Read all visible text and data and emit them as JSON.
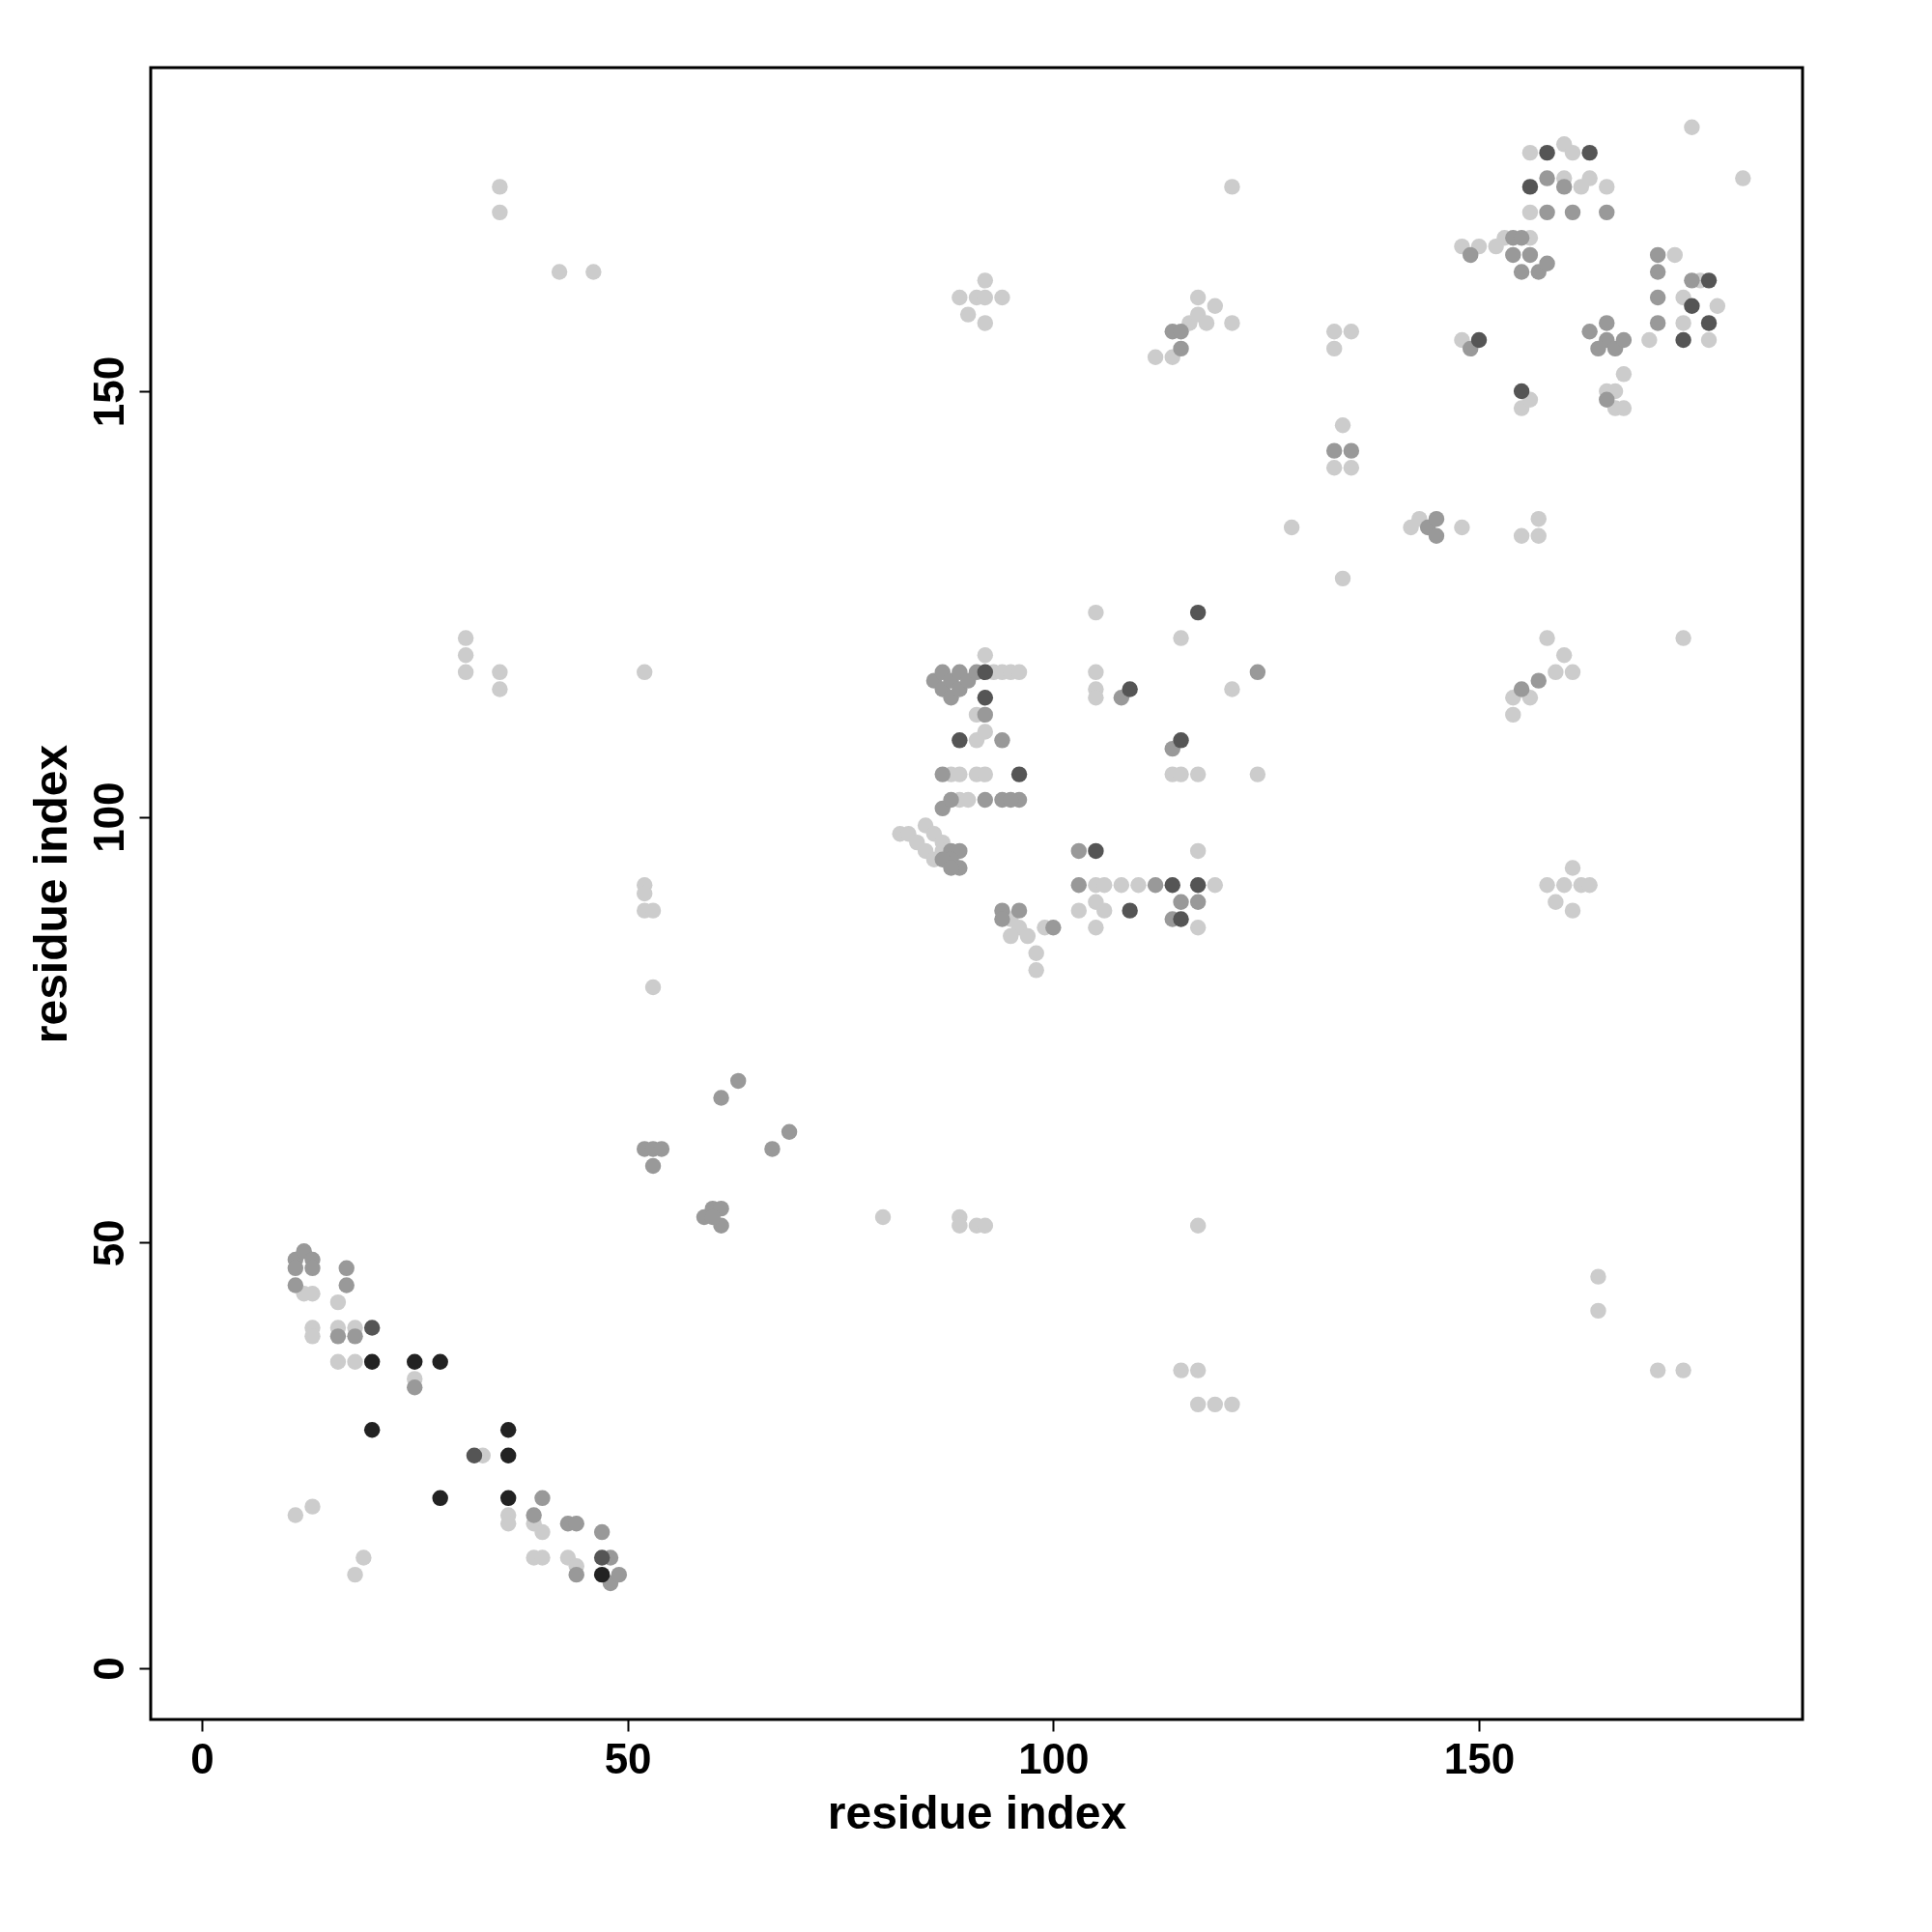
{
  "chart_data": {
    "type": "scatter",
    "xlabel": "residue index",
    "ylabel": "residue index",
    "xlim": [
      -6,
      188
    ],
    "ylim": [
      -6,
      188
    ],
    "xticks": [
      0,
      50,
      100,
      150
    ],
    "yticks": [
      0,
      50,
      100,
      150
    ],
    "grid": false,
    "legend": false,
    "marker": "circle",
    "series": [
      {
        "color": "#cccccc",
        "x": [
          13,
          12,
          16,
          13,
          13,
          16,
          18,
          16,
          18,
          25,
          33,
          36,
          36,
          39,
          40,
          39,
          40,
          43,
          44,
          11,
          13,
          19,
          18,
          35,
          35,
          42,
          46,
          31,
          31,
          31,
          35,
          35,
          52,
          52,
          52,
          52,
          53,
          53,
          80,
          89,
          89,
          91,
          92,
          117,
          115,
          117,
          117,
          119,
          121,
          164,
          164,
          171,
          174,
          82,
          83,
          84,
          85,
          86,
          87,
          85,
          87,
          86,
          88,
          89,
          91,
          92,
          91,
          92,
          91,
          92,
          93,
          94,
          95,
          96,
          89,
          90,
          95,
          96,
          97,
          98,
          98,
          95,
          99,
          103,
          105,
          105,
          105,
          106,
          106,
          108,
          110,
          117,
          117,
          119,
          105,
          105,
          105,
          105,
          114,
          115,
          117,
          115,
          121,
          124,
          89,
          90,
          91,
          92,
          92,
          94,
          92,
          112,
          114,
          116,
          117,
          117,
          119,
          118,
          121,
          121,
          128,
          133,
          135,
          133,
          133,
          134,
          135,
          134,
          142,
          143,
          148,
          148,
          148,
          150,
          152,
          153,
          156,
          156,
          156,
          160,
          161,
          160,
          162,
          163,
          165,
          155,
          156,
          155,
          157,
          157,
          154,
          156,
          158,
          159,
          160,
          161,
          154,
          158,
          160,
          161,
          162,
          163,
          159,
          161,
          165,
          166,
          166,
          167,
          167,
          173,
          174,
          174,
          176,
          177,
          178,
          175,
          181,
          174,
          170
        ],
        "values": [
          44,
          44,
          43,
          40,
          39,
          40,
          40,
          36,
          36,
          34,
          25,
          18,
          17,
          17,
          16,
          13,
          13,
          13,
          12,
          18,
          19,
          13,
          11,
          174,
          171,
          164,
          164,
          121,
          119,
          117,
          117,
          115,
          117,
          92,
          91,
          89,
          89,
          80,
          53,
          53,
          52,
          52,
          52,
          52,
          35,
          35,
          31,
          31,
          31,
          46,
          42,
          35,
          35,
          98,
          98,
          97,
          99,
          98,
          97,
          96,
          96,
          95,
          105,
          105,
          105,
          105,
          109,
          110,
          112,
          119,
          117,
          117,
          117,
          117,
          102,
          102,
          88,
          87,
          86,
          84,
          82,
          86,
          87,
          89,
          92,
          90,
          87,
          92,
          89,
          92,
          92,
          96,
          87,
          92,
          124,
          117,
          115,
          114,
          105,
          105,
          105,
          121,
          115,
          105,
          161,
          159,
          161,
          163,
          158,
          161,
          161,
          154,
          154,
          158,
          161,
          159,
          160,
          158,
          158,
          174,
          134,
          157,
          157,
          155,
          141,
          146,
          141,
          128,
          134,
          135,
          134,
          156,
          167,
          167,
          167,
          168,
          168,
          178,
          171,
          179,
          178,
          175,
          174,
          175,
          174,
          148,
          149,
          133,
          135,
          133,
          114,
          114,
          121,
          117,
          119,
          117,
          112,
          92,
          92,
          94,
          92,
          92,
          90,
          89,
          150,
          150,
          148,
          152,
          148,
          166,
          161,
          158,
          163,
          156,
          160,
          181,
          175,
          121,
          156
        ]
      },
      {
        "color": "#999999",
        "x": [
          11,
          12,
          13,
          11,
          13,
          17,
          11,
          17,
          16,
          18,
          25,
          40,
          39,
          43,
          44,
          44,
          47,
          48,
          48,
          49,
          52,
          53,
          54,
          53,
          59,
          60,
          61,
          61,
          60,
          61,
          63,
          67,
          69,
          88,
          89,
          88,
          87,
          89,
          88,
          87,
          87,
          88,
          86,
          87,
          87,
          88,
          88,
          89,
          89,
          90,
          91,
          94,
          92,
          92,
          94,
          96,
          95,
          94,
          94,
          96,
          100,
          103,
          103,
          112,
          114,
          117,
          115,
          108,
          114,
          124,
          114,
          115,
          115,
          133,
          135,
          144,
          145,
          145,
          149,
          149,
          154,
          154,
          155,
          156,
          157,
          158,
          155,
          158,
          158,
          160,
          161,
          165,
          157,
          155,
          163,
          165,
          165,
          166,
          167,
          164,
          165,
          171,
          171,
          171,
          171,
          175
        ],
        "values": [
          48,
          49,
          48,
          47,
          47,
          47,
          45,
          45,
          39,
          39,
          33,
          20,
          18,
          17,
          17,
          11,
          16,
          13,
          10,
          11,
          61,
          61,
          61,
          59,
          53,
          54,
          54,
          52,
          53,
          67,
          69,
          61,
          63,
          96,
          96,
          95,
          95,
          94,
          94,
          105,
          101,
          102,
          116,
          115,
          117,
          116,
          114,
          117,
          115,
          116,
          117,
          109,
          112,
          102,
          102,
          102,
          102,
          89,
          88,
          89,
          87,
          96,
          92,
          92,
          88,
          90,
          90,
          114,
          108,
          117,
          157,
          157,
          155,
          143,
          143,
          134,
          135,
          133,
          155,
          166,
          168,
          166,
          168,
          166,
          164,
          165,
          164,
          175,
          171,
          174,
          171,
          171,
          116,
          115,
          157,
          158,
          156,
          155,
          156,
          155,
          149,
          166,
          164,
          161,
          158,
          163
        ]
      },
      {
        "color": "#555555",
        "x": [
          20,
          32,
          47,
          92,
          92,
          89,
          96,
          105,
          109,
          114,
          115,
          117,
          109,
          115,
          117,
          150,
          158,
          156,
          163,
          155,
          174,
          175,
          177,
          177
        ],
        "values": [
          40,
          25,
          13,
          117,
          114,
          109,
          105,
          96,
          89,
          92,
          88,
          92,
          115,
          109,
          124,
          156,
          178,
          174,
          178,
          150,
          156,
          160,
          163,
          158
        ]
      },
      {
        "color": "#222222",
        "x": [
          20,
          25,
          28,
          20,
          36,
          36,
          28,
          36,
          47
        ],
        "values": [
          36,
          36,
          36,
          28,
          28,
          25,
          20,
          20,
          11
        ]
      }
    ]
  }
}
